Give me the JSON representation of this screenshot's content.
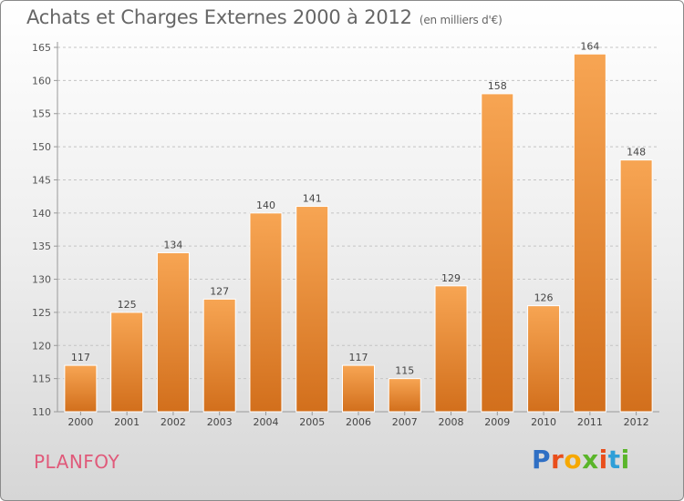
{
  "header": {
    "title": "Achats et Charges Externes 2000 à 2012",
    "subtitle": "(en milliers d'€)"
  },
  "footer": {
    "city": "PLANFOY",
    "logo_letters": [
      "P",
      "r",
      "o",
      "x",
      "i",
      "t",
      "i"
    ]
  },
  "colors": {
    "bar_top": "#f7a553",
    "bar_bottom": "#d26f1c",
    "city_text": "#e05a7a",
    "logo": [
      "#2f6fc4",
      "#e94e1b",
      "#f6a800",
      "#5ab52a",
      "#e94e1b",
      "#2f9fd8",
      "#5ab52a"
    ]
  },
  "chart_data": {
    "type": "bar",
    "categories": [
      "2000",
      "2001",
      "2002",
      "2003",
      "2004",
      "2005",
      "2006",
      "2007",
      "2008",
      "2009",
      "2010",
      "2011",
      "2012"
    ],
    "values": [
      117,
      125,
      134,
      127,
      140,
      141,
      117,
      115,
      129,
      158,
      126,
      164,
      148
    ],
    "ylim": [
      110,
      165
    ],
    "yticks": [
      110,
      115,
      120,
      125,
      130,
      135,
      140,
      145,
      150,
      155,
      160,
      165
    ],
    "grid": "horizontal dashed",
    "data_labels": true
  }
}
